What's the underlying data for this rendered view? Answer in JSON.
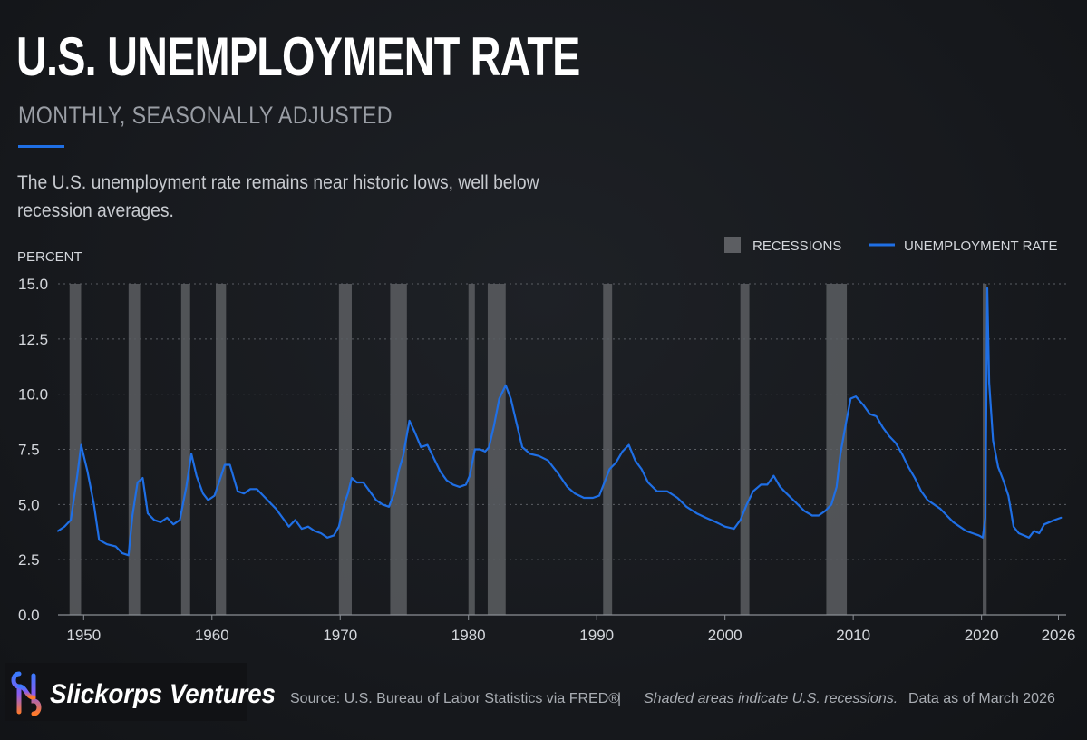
{
  "title": "U.S. UNEMPLOYMENT RATE",
  "subtitle": "MONTHLY, SEASONALLY ADJUSTED",
  "description": "The U.S. unemployment rate remains near historic lows, well below recession averages.",
  "colors": {
    "background": "#17191d",
    "line": "#1f6fe5",
    "recession": "#5c5e62",
    "grid": "#5a5d63",
    "text": "#d4d7dc"
  },
  "chart_data": {
    "type": "line",
    "ylabel": "PERCENT",
    "ylim": [
      0,
      15
    ],
    "yticks": [
      "0.0",
      "2.5",
      "5.0",
      "7.5",
      "10.0",
      "12.5",
      "15.0"
    ],
    "xlim": [
      1948.0,
      2026.6
    ],
    "xticks": [
      "1950",
      "1960",
      "1970",
      "1980",
      "1990",
      "2000",
      "2010",
      "2020",
      "2026"
    ],
    "grid": "horizontal dotted",
    "legend": {
      "placement": "top-right",
      "items": [
        {
          "label": "RECESSIONS",
          "icon": "gray-square-icon"
        },
        {
          "label": "UNEMPLOYMENT RATE",
          "icon": "blue-line-icon"
        }
      ]
    },
    "recessions": [
      [
        1948.9,
        1949.8
      ],
      [
        1953.5,
        1954.4
      ],
      [
        1957.6,
        1958.3
      ],
      [
        1960.3,
        1961.1
      ],
      [
        1969.9,
        1970.9
      ],
      [
        1973.9,
        1975.2
      ],
      [
        1980.0,
        1980.5
      ],
      [
        1981.5,
        1982.9
      ],
      [
        1990.5,
        1991.2
      ],
      [
        2001.2,
        2001.9
      ],
      [
        2007.9,
        2009.5
      ],
      [
        2020.1,
        2020.4
      ]
    ],
    "series": [
      {
        "name": "UNEMPLOYMENT RATE",
        "x": [
          1948.0,
          1948.5,
          1949.0,
          1949.5,
          1949.8,
          1950.3,
          1950.8,
          1951.2,
          1951.8,
          1952.5,
          1953.0,
          1953.5,
          1953.8,
          1954.2,
          1954.6,
          1955.0,
          1955.5,
          1956.0,
          1956.5,
          1957.0,
          1957.5,
          1958.0,
          1958.4,
          1958.8,
          1959.3,
          1959.7,
          1960.2,
          1960.6,
          1961.0,
          1961.4,
          1962.0,
          1962.5,
          1963.0,
          1963.5,
          1964.0,
          1964.5,
          1965.0,
          1965.5,
          1966.0,
          1966.5,
          1967.0,
          1967.5,
          1968.0,
          1968.5,
          1969.0,
          1969.5,
          1969.9,
          1970.3,
          1970.6,
          1970.9,
          1971.3,
          1971.8,
          1972.3,
          1972.8,
          1973.3,
          1973.8,
          1974.2,
          1974.6,
          1974.9,
          1975.4,
          1975.8,
          1976.3,
          1976.8,
          1977.3,
          1977.8,
          1978.3,
          1978.8,
          1979.3,
          1979.8,
          1980.1,
          1980.5,
          1980.9,
          1981.3,
          1981.6,
          1982.0,
          1982.4,
          1982.9,
          1983.3,
          1983.7,
          1984.2,
          1984.8,
          1985.5,
          1986.2,
          1987.0,
          1987.7,
          1988.3,
          1989.0,
          1989.7,
          1990.2,
          1990.6,
          1991.0,
          1991.5,
          1992.0,
          1992.5,
          1993.0,
          1993.5,
          1994.0,
          1994.7,
          1995.5,
          1996.3,
          1997.0,
          1997.8,
          1998.5,
          1999.3,
          2000.0,
          2000.7,
          2001.2,
          2001.7,
          2002.2,
          2002.8,
          2003.3,
          2003.8,
          2004.3,
          2004.8,
          2005.5,
          2006.2,
          2006.8,
          2007.3,
          2007.8,
          2008.3,
          2008.7,
          2009.0,
          2009.4,
          2009.8,
          2010.2,
          2010.8,
          2011.3,
          2011.8,
          2012.3,
          2012.8,
          2013.3,
          2013.8,
          2014.3,
          2014.8,
          2015.3,
          2015.8,
          2016.3,
          2016.8,
          2017.3,
          2017.8,
          2018.3,
          2018.8,
          2019.3,
          2019.8,
          2020.1,
          2020.3,
          2020.45,
          2020.6,
          2020.9,
          2021.3,
          2021.7,
          2022.1,
          2022.5,
          2022.9,
          2023.3,
          2023.7,
          2024.1,
          2024.5,
          2024.9,
          2025.3,
          2025.7,
          2026.2
        ],
        "y": [
          3.8,
          4.0,
          4.3,
          6.3,
          7.7,
          6.5,
          5.0,
          3.4,
          3.2,
          3.1,
          2.8,
          2.7,
          4.5,
          6.0,
          6.2,
          4.6,
          4.3,
          4.2,
          4.4,
          4.1,
          4.3,
          5.8,
          7.3,
          6.3,
          5.5,
          5.2,
          5.4,
          6.1,
          6.8,
          6.8,
          5.6,
          5.5,
          5.7,
          5.7,
          5.4,
          5.1,
          4.8,
          4.4,
          4.0,
          4.3,
          3.9,
          4.0,
          3.8,
          3.7,
          3.5,
          3.6,
          4.0,
          5.0,
          5.5,
          6.2,
          6.0,
          6.0,
          5.6,
          5.2,
          5.0,
          4.9,
          5.5,
          6.6,
          7.2,
          8.8,
          8.3,
          7.6,
          7.7,
          7.1,
          6.5,
          6.1,
          5.9,
          5.8,
          5.9,
          6.3,
          7.5,
          7.5,
          7.4,
          7.6,
          8.6,
          9.8,
          10.4,
          9.8,
          8.8,
          7.6,
          7.3,
          7.2,
          7.0,
          6.4,
          5.8,
          5.5,
          5.3,
          5.3,
          5.4,
          6.0,
          6.6,
          6.9,
          7.4,
          7.7,
          7.0,
          6.6,
          6.0,
          5.6,
          5.6,
          5.3,
          4.9,
          4.6,
          4.4,
          4.2,
          4.0,
          3.9,
          4.3,
          5.0,
          5.6,
          5.9,
          5.9,
          6.3,
          5.8,
          5.5,
          5.1,
          4.7,
          4.5,
          4.5,
          4.7,
          5.0,
          5.8,
          7.3,
          8.6,
          9.8,
          9.9,
          9.5,
          9.1,
          9.0,
          8.5,
          8.1,
          7.8,
          7.3,
          6.7,
          6.2,
          5.6,
          5.2,
          5.0,
          4.8,
          4.5,
          4.2,
          4.0,
          3.8,
          3.7,
          3.6,
          3.5,
          4.4,
          14.8,
          10.5,
          7.9,
          6.7,
          6.1,
          5.4,
          4.0,
          3.7,
          3.6,
          3.5,
          3.8,
          3.7,
          4.1,
          4.2,
          4.3,
          4.4
        ]
      }
    ]
  },
  "footer": {
    "brand": "Slickorps Ventures",
    "source": "Source: U.S. Bureau of Labor Statistics via FRED®",
    "separator": "|",
    "note": "Shaded areas indicate U.S. recessions.",
    "as_of": "Data as of March 2026"
  }
}
